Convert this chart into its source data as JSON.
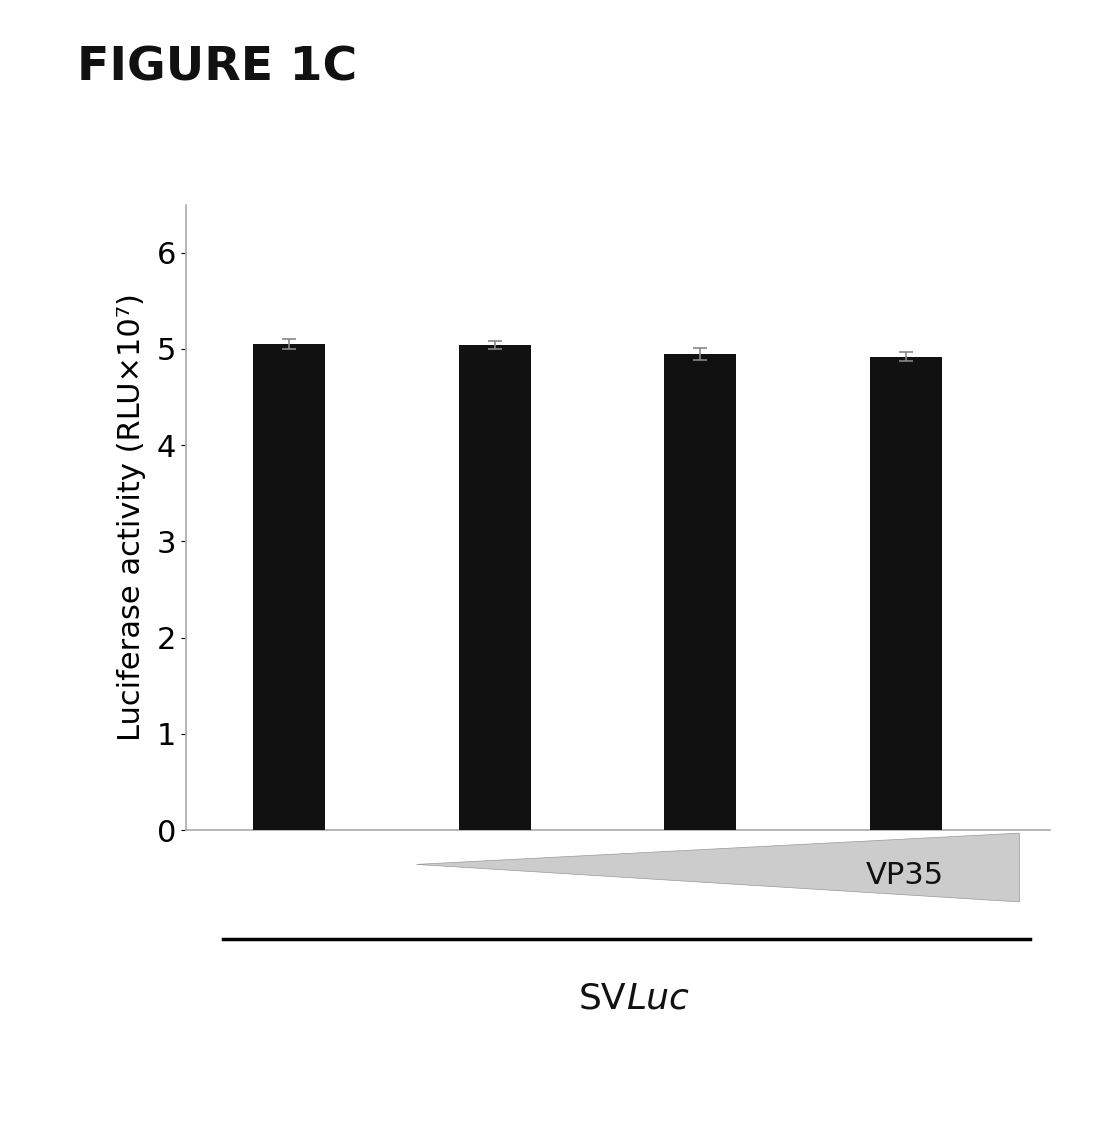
{
  "title": "FIGURE 1C",
  "ylabel": "Luciferase activity (RLU×10⁷)",
  "bar_values": [
    5.05,
    5.04,
    4.95,
    4.92
  ],
  "bar_errors": [
    0.05,
    0.04,
    0.06,
    0.05
  ],
  "bar_positions": [
    1,
    2,
    3,
    4
  ],
  "bar_color": "#111111",
  "bar_width": 0.35,
  "ylim": [
    0,
    6.5
  ],
  "yticks": [
    0,
    1,
    2,
    3,
    4,
    5,
    6
  ],
  "yticklabels": [
    "0",
    "1",
    "2",
    "3",
    "4",
    "5",
    "6"
  ],
  "background_color": "#ffffff",
  "vp35_label": "VP35",
  "errorbar_color": "#888888",
  "spine_color": "#aaaaaa",
  "title_fontsize": 34,
  "ylabel_fontsize": 22,
  "ytick_fontsize": 22,
  "vp35_fontsize": 22,
  "svluc_fontsize": 26
}
